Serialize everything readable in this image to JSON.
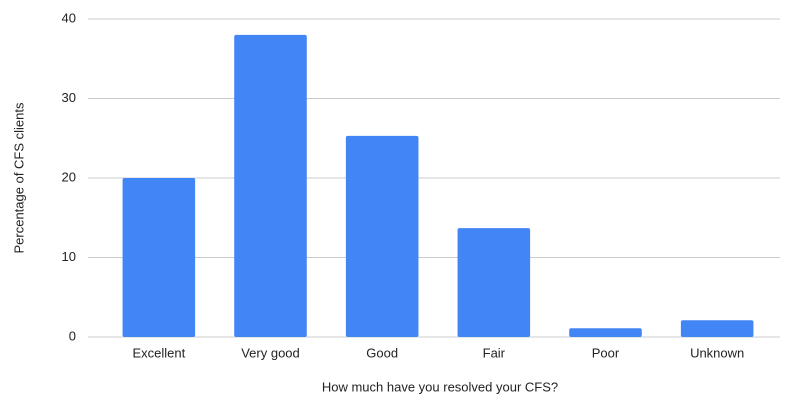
{
  "chart_data": {
    "type": "bar",
    "x_label": "How much have you resolved your CFS?",
    "y_label": "Percentage of CFS clients",
    "categories": [
      "Excellent",
      "Very good",
      "Good",
      "Fair",
      "Poor",
      "Unknown"
    ],
    "values": [
      20,
      38,
      25.3,
      13.7,
      1.1,
      2.1
    ],
    "color": "#4285f4",
    "ylim": [
      0,
      40
    ],
    "yticks": [
      0,
      10,
      20,
      30,
      40
    ],
    "grid": true
  }
}
